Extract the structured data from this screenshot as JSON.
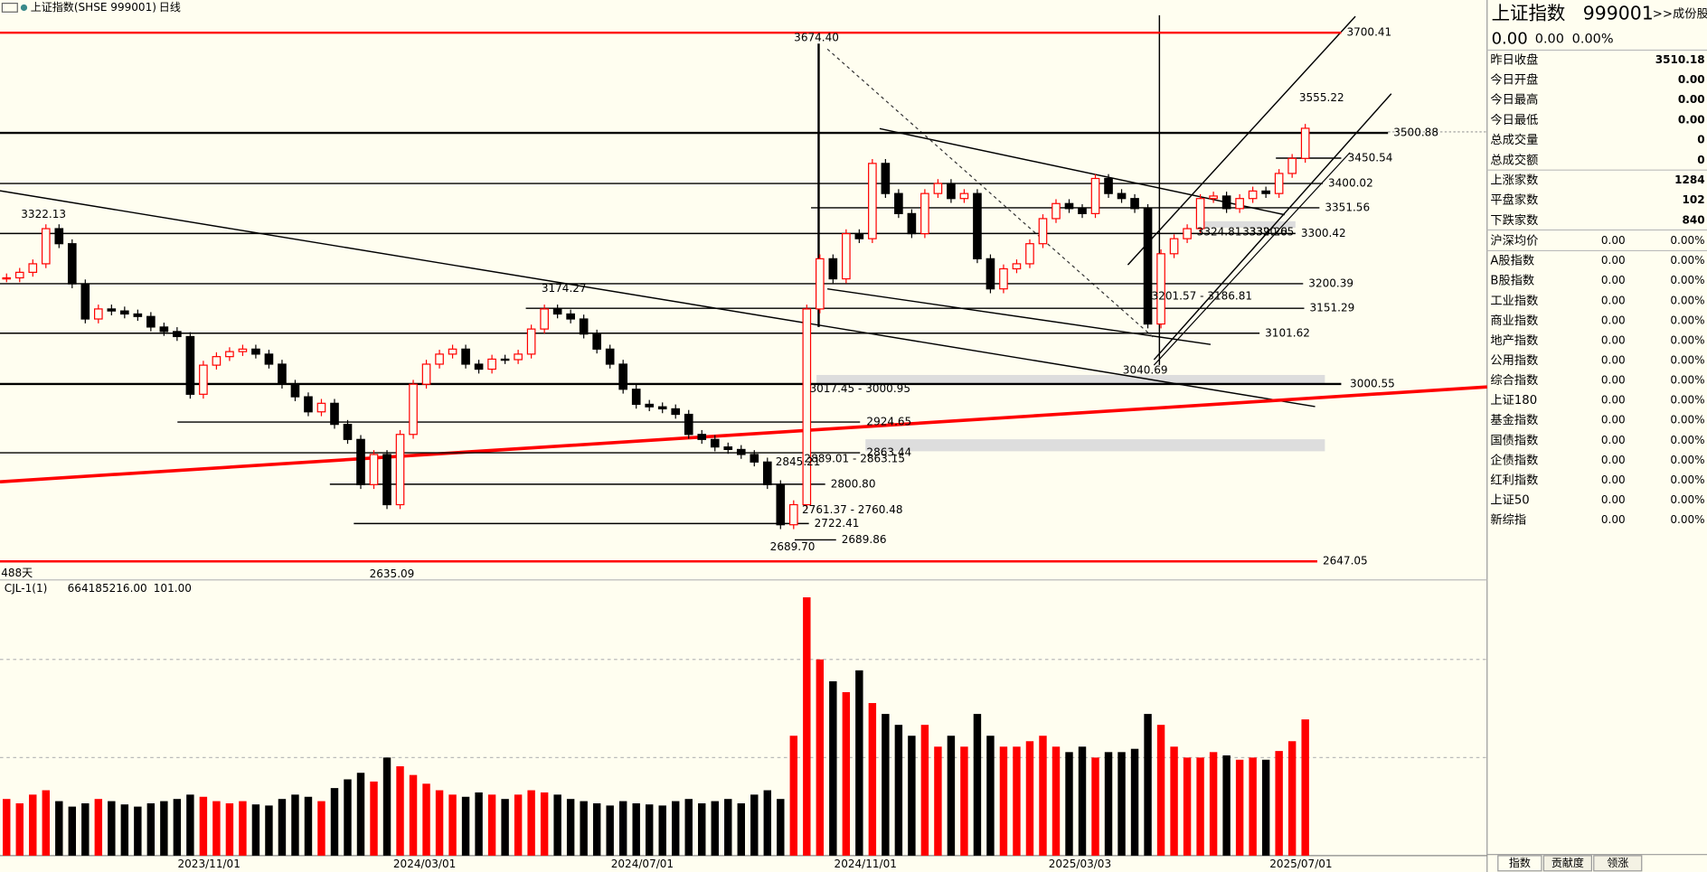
{
  "header": {
    "title": "上证指数(SHSE 999001)",
    "period": "日线"
  },
  "chart_data": {
    "type": "candlestick",
    "up_color": "#ff0000",
    "down_color": "#000000",
    "ylim": [
      2614.5,
      3735.2
    ],
    "closes": [
      3212,
      3223,
      3240,
      3310,
      3280,
      3200,
      3130,
      3150,
      3146,
      3140,
      3135,
      3114,
      3105,
      3095,
      2980,
      3038,
      3055,
      3065,
      3070,
      3060,
      3040,
      3000,
      2975,
      2945,
      2962,
      2920,
      2890,
      2800,
      2860,
      2760,
      2900,
      3000,
      3040,
      3060,
      3070,
      3040,
      3030,
      3050,
      3049,
      3060,
      3110,
      3150,
      3140,
      3130,
      3100,
      3070,
      3040,
      2990,
      2960,
      2955,
      2951,
      2940,
      2900,
      2890,
      2875,
      2870,
      2860,
      2845,
      2800,
      2720,
      2760,
      3150,
      3250,
      3210,
      3300,
      3290,
      3440,
      3380,
      3340,
      3300,
      3380,
      3400,
      3370,
      3380,
      3250,
      3190,
      3230,
      3240,
      3280,
      3330,
      3360,
      3350,
      3340,
      3410,
      3380,
      3370,
      3350,
      3120,
      3260,
      3290,
      3310,
      3370,
      3375,
      3350,
      3370,
      3385,
      3380,
      3420,
      3450,
      3510
    ],
    "volume_lim": [
      0,
      2500
    ],
    "volumes": [
      520,
      480,
      560,
      600,
      500,
      450,
      480,
      520,
      500,
      470,
      450,
      480,
      500,
      520,
      560,
      540,
      500,
      480,
      500,
      470,
      460,
      520,
      560,
      540,
      500,
      620,
      700,
      760,
      680,
      900,
      820,
      740,
      660,
      600,
      560,
      540,
      580,
      560,
      520,
      560,
      600,
      580,
      560,
      520,
      500,
      480,
      460,
      500,
      480,
      470,
      460,
      500,
      520,
      480,
      500,
      520,
      480,
      560,
      600,
      520,
      1100,
      2370,
      1800,
      1600,
      1500,
      1700,
      1400,
      1300,
      1200,
      1100,
      1200,
      1000,
      1100,
      1000,
      1300,
      1100,
      1000,
      1000,
      1050,
      1100,
      1000,
      950,
      1000,
      900,
      950,
      950,
      980,
      1300,
      1200,
      1000,
      900,
      900,
      950,
      920,
      880,
      900,
      880,
      960,
      1050,
      1250
    ],
    "levels": [
      {
        "value": 3700.41,
        "label": "3700.41",
        "color": "#ff0000"
      },
      {
        "value": 3500.88,
        "label": "3500.88",
        "color": "#000000"
      },
      {
        "value": 3450.54,
        "label": "3450.54",
        "color": "#000000"
      },
      {
        "value": 3400.02,
        "label": "3400.02",
        "color": "#000000"
      },
      {
        "value": 3351.56,
        "label": "3351.56",
        "color": "#000000"
      },
      {
        "value": 3300.42,
        "label": "3300.42",
        "color": "#000000"
      },
      {
        "value": 3200.39,
        "label": "3200.39",
        "color": "#000000"
      },
      {
        "value": 3151.29,
        "label": "3151.29",
        "color": "#000000"
      },
      {
        "value": 3101.62,
        "label": "3101.62",
        "color": "#000000"
      },
      {
        "value": 3000.55,
        "label": "3000.55",
        "color": "#000000"
      },
      {
        "value": 2924.65,
        "label": "2924.65",
        "color": "#000000"
      },
      {
        "value": 2863.44,
        "label": "2863.44",
        "color": "#000000"
      },
      {
        "value": 2800.8,
        "label": "2800.80",
        "color": "#000000"
      },
      {
        "value": 2722.41,
        "label": "2722.41",
        "color": "#000000"
      },
      {
        "value": 2689.86,
        "label": "2689.86",
        "color": "#000000"
      },
      {
        "value": 2647.05,
        "label": "2647.05",
        "color": "#ff0000"
      }
    ],
    "annotations": [
      "3674.40",
      "3322.13",
      "3174.27",
      "3555.22",
      "2635.09",
      "2689.70",
      "3040.69",
      "3017.45 - 3000.95",
      "2889.01 - 2863.15",
      "2845.21",
      "2761.37 - 2760.48",
      "3201.57 - 3186.81",
      "3324.81",
      "3339.20",
      "3320.65"
    ],
    "days": "488天",
    "indicator": {
      "name": "CJL-1(1)",
      "value1": "664185216.00",
      "value2": "101.00"
    },
    "x_labels": [
      "2023/11/01",
      "2024/03/01",
      "2024/07/01",
      "2024/11/01",
      "2025/03/03",
      "2025/07/01"
    ]
  },
  "side_panel": {
    "title": "上证指数",
    "code": "999001",
    "link": ">>成份股",
    "quote": [
      "0.00",
      "0.00",
      "0.00%"
    ],
    "rows": [
      [
        "昨日收盘",
        "3510.18"
      ],
      [
        "今日开盘",
        "0.00"
      ],
      [
        "今日最高",
        "0.00"
      ],
      [
        "今日最低",
        "0.00"
      ],
      [
        "总成交量",
        "0"
      ],
      [
        "总成交额",
        "0"
      ],
      [
        "上涨家数",
        "1284"
      ],
      [
        "平盘家数",
        "102"
      ],
      [
        "下跌家数",
        "840"
      ]
    ],
    "index_rows": [
      [
        "沪深均价",
        "0.00",
        "0.00%"
      ],
      [
        "A股指数",
        "0.00",
        "0.00%"
      ],
      [
        "B股指数",
        "0.00",
        "0.00%"
      ],
      [
        "工业指数",
        "0.00",
        "0.00%"
      ],
      [
        "商业指数",
        "0.00",
        "0.00%"
      ],
      [
        "地产指数",
        "0.00",
        "0.00%"
      ],
      [
        "公用指数",
        "0.00",
        "0.00%"
      ],
      [
        "综合指数",
        "0.00",
        "0.00%"
      ],
      [
        "上证180",
        "0.00",
        "0.00%"
      ],
      [
        "基金指数",
        "0.00",
        "0.00%"
      ],
      [
        "国债指数",
        "0.00",
        "0.00%"
      ],
      [
        "企债指数",
        "0.00",
        "0.00%"
      ],
      [
        "红利指数",
        "0.00",
        "0.00%"
      ],
      [
        "上证50",
        "0.00",
        "0.00%"
      ],
      [
        "新综指",
        "0.00",
        "0.00%"
      ]
    ],
    "tabs": [
      "指数",
      "贡献度",
      "领涨"
    ]
  }
}
